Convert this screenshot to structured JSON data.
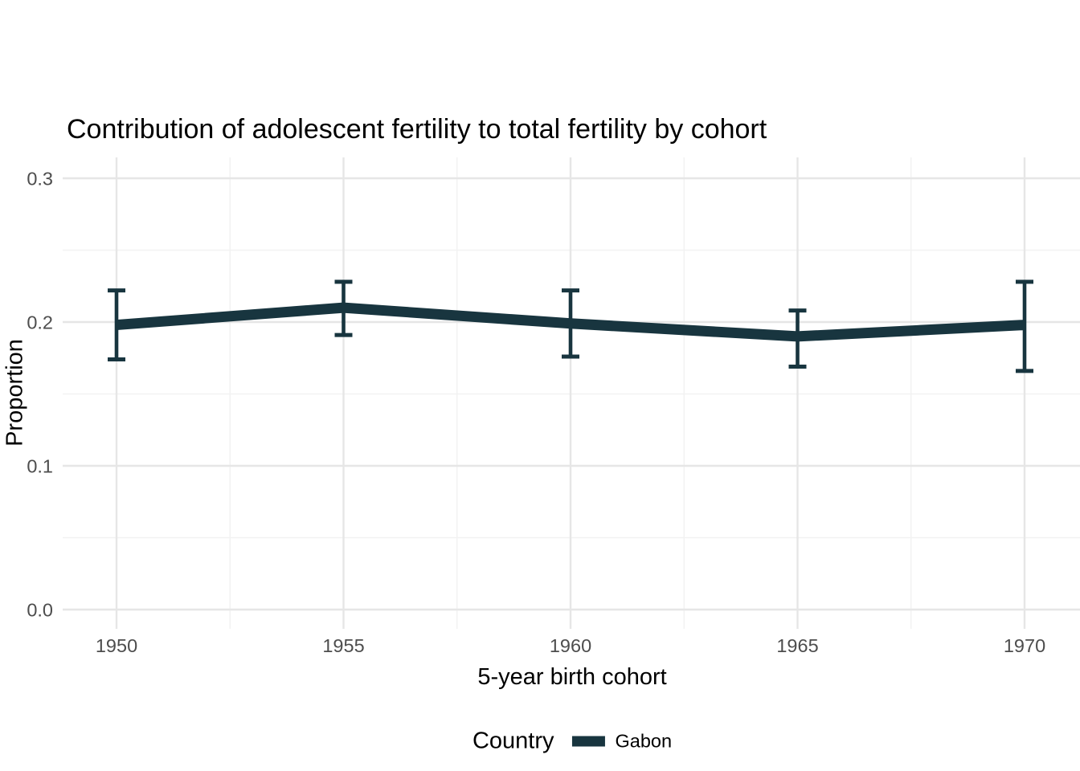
{
  "chart_data": {
    "type": "line",
    "title": "Contribution of adolescent fertility to total fertility by cohort",
    "xlabel": "5-year birth cohort",
    "ylabel": "Proportion",
    "x": [
      1950,
      1955,
      1960,
      1965,
      1970
    ],
    "x_tick_labels": [
      "1950",
      "1955",
      "1960",
      "1965",
      "1970"
    ],
    "y_tick_values": [
      0,
      0.1,
      0.2,
      0.3
    ],
    "y_tick_labels": [
      "0.0",
      "0.1",
      "0.2",
      "0.3"
    ],
    "x_minor": [
      1952.5,
      1957.5,
      1962.5,
      1967.5
    ],
    "y_minor": [
      0.05,
      0.15,
      0.25
    ],
    "xlim": [
      1948.8,
      1971.2
    ],
    "ylim": [
      0,
      0.3
    ],
    "grid": "major and minor gridlines, no axis lines, no tick marks",
    "legend_position": "bottom",
    "legend": {
      "title": "Country",
      "entries": [
        {
          "label": "Gabon",
          "color": "#18353F"
        }
      ]
    },
    "series": [
      {
        "name": "Gabon",
        "color": "#18353F",
        "values": [
          0.198,
          0.21,
          0.199,
          0.19,
          0.198
        ],
        "lower": [
          0.174,
          0.191,
          0.176,
          0.169,
          0.166
        ],
        "upper": [
          0.222,
          0.228,
          0.222,
          0.208,
          0.228
        ]
      }
    ]
  },
  "colors": {
    "line": "#18353F",
    "grid_major": "#E6E6E6",
    "grid_minor": "#F2F2F2",
    "tick_text": "#4D4D4D",
    "title_text": "#000000",
    "background": "#FFFFFF"
  }
}
